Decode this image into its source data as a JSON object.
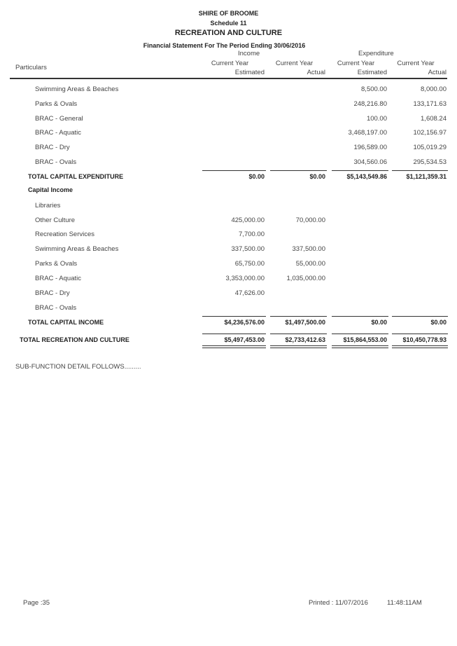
{
  "header": {
    "org": "SHIRE OF BROOME",
    "schedule": "Schedule 11",
    "title": "RECREATION AND CULTURE",
    "subtitle": "Financial Statement For The Period Ending 30/06/2016"
  },
  "columns": {
    "particulars": "Particulars",
    "income": "Income",
    "expenditure": "Expenditure",
    "col_labels": [
      [
        "Current Year",
        "Estimated"
      ],
      [
        "Current Year",
        "Actual"
      ],
      [
        "Current Year",
        "Estimated"
      ],
      [
        "Current Year",
        "Actual"
      ]
    ]
  },
  "rows": [
    {
      "type": "item",
      "label": "Swimming Areas & Beaches",
      "values": [
        "",
        "",
        "8,500.00",
        "8,000.00"
      ]
    },
    {
      "type": "item",
      "label": "Parks & Ovals",
      "values": [
        "",
        "",
        "248,216.80",
        "133,171.63"
      ]
    },
    {
      "type": "item",
      "label": "BRAC - General",
      "values": [
        "",
        "",
        "100.00",
        "1,608.24"
      ]
    },
    {
      "type": "item",
      "label": "BRAC - Aquatic",
      "values": [
        "",
        "",
        "3,468,197.00",
        "102,156.97"
      ]
    },
    {
      "type": "item",
      "label": "BRAC - Dry",
      "values": [
        "",
        "",
        "196,589.00",
        "105,019.29"
      ]
    },
    {
      "type": "item",
      "label": "BRAC - Ovals",
      "values": [
        "",
        "",
        "304,560.06",
        "295,534.53"
      ]
    },
    {
      "type": "total",
      "label": "TOTAL CAPITAL EXPENDITURE",
      "values": [
        "$0.00",
        "$0.00",
        "$5,143,549.86",
        "$1,121,359.31"
      ]
    },
    {
      "type": "section",
      "label": "Capital Income",
      "values": [
        "",
        "",
        "",
        ""
      ]
    },
    {
      "type": "item",
      "label": "Libraries",
      "values": [
        "",
        "",
        "",
        ""
      ]
    },
    {
      "type": "item",
      "label": "Other Culture",
      "values": [
        "425,000.00",
        "70,000.00",
        "",
        ""
      ]
    },
    {
      "type": "item",
      "label": "Recreation Services",
      "values": [
        "7,700.00",
        "",
        "",
        ""
      ]
    },
    {
      "type": "item",
      "label": "Swimming Areas & Beaches",
      "values": [
        "337,500.00",
        "337,500.00",
        "",
        ""
      ]
    },
    {
      "type": "item",
      "label": "Parks & Ovals",
      "values": [
        "65,750.00",
        "55,000.00",
        "",
        ""
      ]
    },
    {
      "type": "item",
      "label": "BRAC - Aquatic",
      "values": [
        "3,353,000.00",
        "1,035,000.00",
        "",
        ""
      ]
    },
    {
      "type": "item",
      "label": "BRAC - Dry",
      "values": [
        "47,626.00",
        "",
        "",
        ""
      ]
    },
    {
      "type": "item",
      "label": "BRAC - Ovals",
      "values": [
        "",
        "",
        "",
        ""
      ]
    },
    {
      "type": "total",
      "label": "TOTAL CAPITAL INCOME",
      "values": [
        "$4,236,576.00",
        "$1,497,500.00",
        "$0.00",
        "$0.00"
      ]
    },
    {
      "type": "grand",
      "label": "TOTAL RECREATION AND CULTURE",
      "values": [
        "$5,497,453.00",
        "$2,733,412.63",
        "$15,864,553.00",
        "$10,450,778.93"
      ]
    }
  ],
  "note": "SUB-FUNCTION DETAIL FOLLOWS.........",
  "footer": {
    "page": "Page :35",
    "printed": "Printed : 11/07/2016",
    "time": "11:48:11AM"
  }
}
